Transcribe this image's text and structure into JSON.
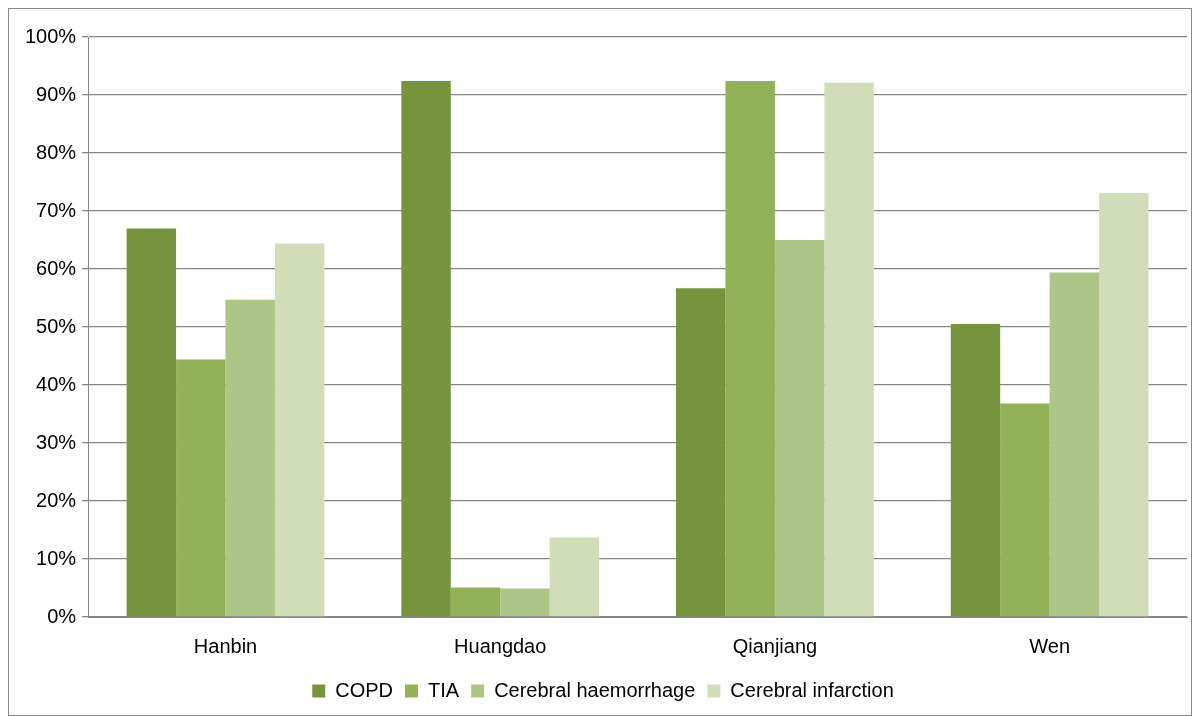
{
  "chart_data": {
    "type": "bar",
    "categories": [
      "Hanbin",
      "Huangdao",
      "Qianjiang",
      "Wen"
    ],
    "series": [
      {
        "name": "COPD",
        "color": "#77933c",
        "values": [
          67,
          92.4,
          56.7,
          50.5
        ]
      },
      {
        "name": "TIA",
        "color": "#93b157",
        "values": [
          44.4,
          5.1,
          92.4,
          36.8
        ]
      },
      {
        "name": "Cerebral haemorrhage",
        "color": "#adc687",
        "values": [
          54.7,
          4.9,
          65,
          59.4
        ]
      },
      {
        "name": "Cerebral infarction",
        "color": "#d0ddb8",
        "values": [
          64.4,
          13.7,
          92.1,
          73.1
        ]
      }
    ],
    "ylim": [
      0,
      100
    ],
    "yticks": [
      {
        "value": 0,
        "label": "0%"
      },
      {
        "value": 10,
        "label": "10%"
      },
      {
        "value": 20,
        "label": "20%"
      },
      {
        "value": 30,
        "label": "30%"
      },
      {
        "value": 40,
        "label": "40%"
      },
      {
        "value": 50,
        "label": "50%"
      },
      {
        "value": 60,
        "label": "60%"
      },
      {
        "value": 70,
        "label": "70%"
      },
      {
        "value": 80,
        "label": "80%"
      },
      {
        "value": 90,
        "label": "90%"
      },
      {
        "value": 100,
        "label": "100%"
      }
    ],
    "grid": "y",
    "legend": "bottom"
  }
}
